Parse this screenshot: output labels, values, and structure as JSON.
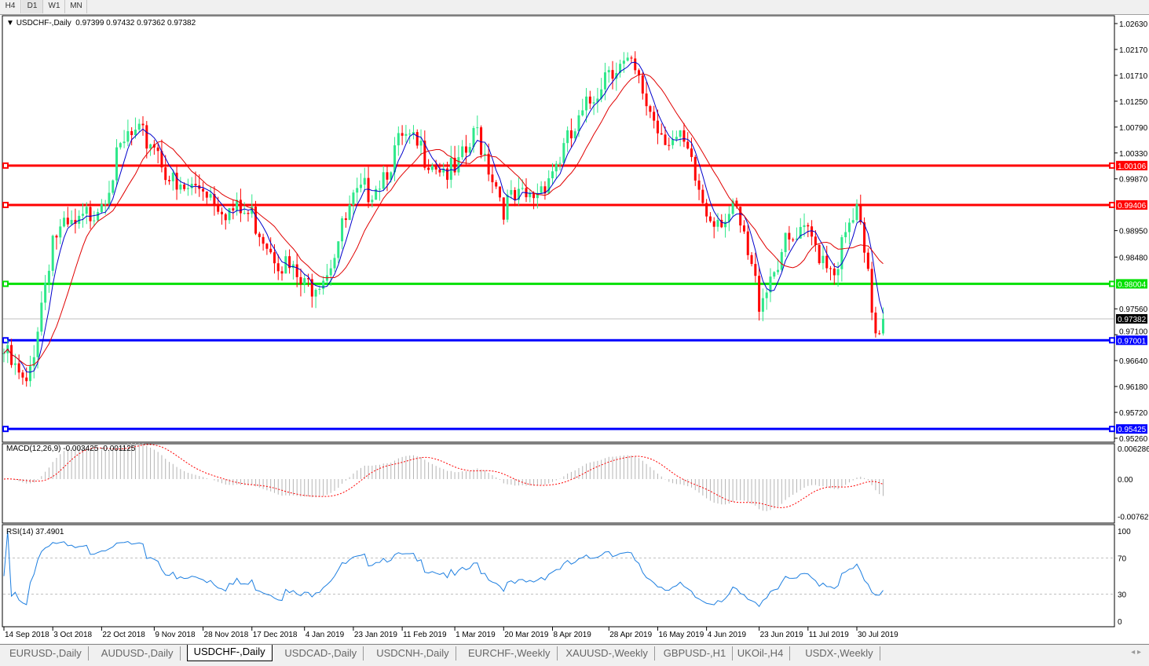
{
  "timeframes": [
    "H4",
    "D1",
    "W1",
    "MN"
  ],
  "active_timeframe": "D1",
  "header": {
    "symbol": "USDCHF-,Daily",
    "ohlc": "0.97399 0.97432 0.97362 0.97382"
  },
  "macd_label": "MACD(12,26,9) -0.003425 -0.001125",
  "rsi_label": "RSI(14) 37.4901",
  "tabs": [
    "EURUSD-,Daily",
    "AUDUSD-,Daily",
    "USDCHF-,Daily",
    "USDCAD-,Daily",
    "USDCNH-,Daily",
    "EURCHF-,Weekly",
    "XAUUSD-,Weekly",
    "GBPUSD-,H1",
    "UKOil-,H4",
    "USDX-,Weekly"
  ],
  "active_tab": "USDCHF-,Daily",
  "colors": {
    "bull": "#2ee88a",
    "bear": "#ff0000",
    "ma_fast": "#0000cc",
    "ma_slow": "#e00000",
    "rsi": "#1e7fe0",
    "macd_hist": "#b4b4b4",
    "macd_signal": "#ff0000"
  },
  "chart_data": [
    {
      "type": "candlestick",
      "title": "USDCHF-,Daily",
      "y_ticks": [
        "1.02630",
        "1.02170",
        "1.01710",
        "1.01250",
        "1.00790",
        "1.00330",
        "0.99870",
        "0.98950",
        "0.98480",
        "0.97560",
        "0.97100",
        "0.96640",
        "0.96180",
        "0.95720",
        "0.95260"
      ],
      "ylim": [
        0.9526,
        1.0263
      ],
      "x_ticks": [
        {
          "label": "14 Sep 2018",
          "date": "2018-09-14"
        },
        {
          "label": "3 Oct 2018",
          "date": "2018-10-03"
        },
        {
          "label": "22 Oct 2018",
          "date": "2018-10-22"
        },
        {
          "label": "9 Nov 2018",
          "date": "2018-11-09"
        },
        {
          "label": "28 Nov 2018",
          "date": "2018-11-28"
        },
        {
          "label": "17 Dec 2018",
          "date": "2018-12-17"
        },
        {
          "label": "4 Jan 2019",
          "date": "2019-01-04"
        },
        {
          "label": "23 Jan 2019",
          "date": "2019-01-23"
        },
        {
          "label": "11 Feb 2019",
          "date": "2019-02-11"
        },
        {
          "label": "1 Mar 2019",
          "date": "2019-03-01"
        },
        {
          "label": "20 Mar 2019",
          "date": "2019-03-20"
        },
        {
          "label": "8 Apr 2019",
          "date": "2019-04-08"
        },
        {
          "label": "28 Apr 2019",
          "date": "2019-04-28"
        },
        {
          "label": "16 May 2019",
          "date": "2019-05-16"
        },
        {
          "label": "4 Jun 2019",
          "date": "2019-06-04"
        },
        {
          "label": "23 Jun 2019",
          "date": "2019-06-23"
        },
        {
          "label": "11 Jul 2019",
          "date": "2019-07-11"
        },
        {
          "label": "30 Jul 2019",
          "date": "2019-07-30"
        }
      ],
      "approx_closes": [
        [
          "2018-09-14",
          0.9677
        ],
        [
          "2018-09-24",
          0.961
        ],
        [
          "2018-10-03",
          0.9886
        ],
        [
          "2018-10-12",
          0.99
        ],
        [
          "2018-10-22",
          0.9956
        ],
        [
          "2018-10-31",
          1.006
        ],
        [
          "2018-11-09",
          1.0054
        ],
        [
          "2018-11-19",
          0.996
        ],
        [
          "2018-11-28",
          0.9977
        ],
        [
          "2018-12-07",
          0.993
        ],
        [
          "2018-12-17",
          0.9921
        ],
        [
          "2018-12-26",
          0.985
        ],
        [
          "2019-01-04",
          0.979
        ],
        [
          "2019-01-14",
          0.983
        ],
        [
          "2019-01-23",
          0.9942
        ],
        [
          "2019-02-01",
          0.999
        ],
        [
          "2019-02-11",
          1.0054
        ],
        [
          "2019-02-20",
          1.003
        ],
        [
          "2019-03-01",
          0.9991
        ],
        [
          "2019-03-11",
          1.007
        ],
        [
          "2019-03-20",
          0.9942
        ],
        [
          "2019-03-29",
          0.995
        ],
        [
          "2019-04-08",
          1.0005
        ],
        [
          "2019-04-17",
          1.008
        ],
        [
          "2019-04-28",
          1.0193
        ],
        [
          "2019-05-07",
          1.018
        ],
        [
          "2019-05-16",
          1.0082
        ],
        [
          "2019-05-26",
          1.004
        ],
        [
          "2019-06-04",
          0.9928
        ],
        [
          "2019-06-14",
          0.992
        ],
        [
          "2019-06-23",
          0.9774
        ],
        [
          "2019-07-02",
          0.986
        ],
        [
          "2019-07-11",
          0.9886
        ],
        [
          "2019-07-21",
          0.983
        ],
        [
          "2019-07-30",
          0.9928
        ],
        [
          "2019-08-06",
          0.972
        ],
        [
          "2019-08-08",
          0.97382
        ]
      ],
      "current_price": "0.97382",
      "levels": [
        {
          "value": "1.00106",
          "color": "#ff0000"
        },
        {
          "value": "0.99406",
          "color": "#ff0000"
        },
        {
          "value": "0.98004",
          "color": "#00e000"
        },
        {
          "value": "0.97001",
          "color": "#0000ff"
        },
        {
          "value": "0.95425",
          "color": "#0000ff"
        }
      ],
      "moving_averages": [
        "fast (blue)",
        "slow (red)"
      ]
    },
    {
      "type": "bar+line",
      "name": "MACD(12,26,9)",
      "y_ticks": [
        "0.006286",
        "0.00",
        "-0.00762"
      ],
      "ylim": [
        -0.00762,
        0.006286
      ]
    },
    {
      "type": "line",
      "name": "RSI(14)",
      "y_ticks": [
        "100",
        "70",
        "30",
        "0"
      ],
      "ylim": [
        0,
        100
      ],
      "levels": [
        70,
        30
      ]
    }
  ]
}
